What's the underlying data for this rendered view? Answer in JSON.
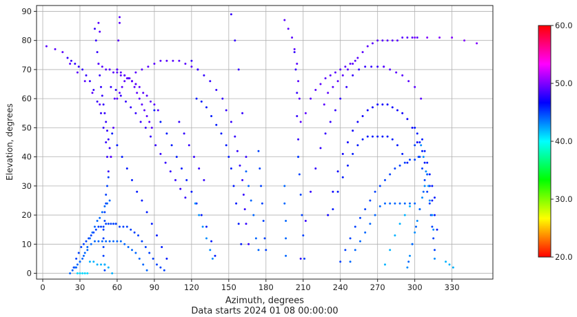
{
  "chart_data": {
    "type": "scatter",
    "title": "",
    "xlabel": "Azimuth, degrees",
    "ylabel": "Elevation, degrees",
    "footer": "Data starts 2024 01 08 00:00:00",
    "xlim": [
      -5,
      363
    ],
    "ylim": [
      -2,
      92
    ],
    "xticks": [
      0,
      30,
      60,
      90,
      120,
      150,
      180,
      210,
      240,
      270,
      300,
      330
    ],
    "yticks": [
      0,
      10,
      20,
      30,
      40,
      50,
      60,
      70,
      80,
      90
    ],
    "grid": true,
    "colorbar": {
      "min": 20,
      "max": 60,
      "ticks": [
        "20.0",
        "30.0",
        "40.0",
        "50.0",
        "60.0"
      ],
      "colormap": "hsv"
    },
    "tracks": [
      {
        "x": [
          3,
          10,
          16,
          22,
          28,
          34,
          40,
          46
        ],
        "y": [
          78,
          77,
          76,
          72,
          69,
          66,
          62,
          58
        ],
        "c": 49
      },
      {
        "x": [
          42,
          43,
          44,
          45,
          46,
          47,
          48,
          49,
          50,
          51,
          52,
          53,
          54,
          55
        ],
        "y": [
          84,
          80,
          76,
          72,
          68,
          64,
          61,
          58,
          55,
          52,
          49,
          46,
          43,
          40
        ],
        "c": 48
      },
      {
        "x": [
          45,
          46
        ],
        "y": [
          86,
          83
        ],
        "c": 49
      },
      {
        "x": [
          55,
          57,
          58,
          60,
          61,
          62,
          62
        ],
        "y": [
          40,
          50,
          60,
          70,
          80,
          86,
          88
        ],
        "c": 49
      },
      {
        "x": [
          20,
          23,
          26,
          29,
          32,
          35,
          38,
          41,
          44,
          47,
          49,
          51,
          52,
          53
        ],
        "y": [
          74,
          73,
          72,
          71,
          70,
          68,
          66,
          63,
          59,
          55,
          50,
          45,
          40,
          35
        ],
        "c": 48
      },
      {
        "x": [
          53,
          52,
          51,
          51,
          50,
          50,
          49,
          49,
          49,
          49,
          50,
          50
        ],
        "y": [
          33,
          30,
          27,
          24,
          21,
          18,
          15,
          12,
          9,
          6,
          3,
          1
        ],
        "c": 45
      },
      {
        "x": [
          45,
          48,
          51,
          54,
          57,
          60,
          63,
          66,
          69,
          72,
          75
        ],
        "y": [
          72,
          71,
          70,
          70,
          69,
          69,
          68,
          68,
          67,
          66,
          65
        ],
        "c": 49
      },
      {
        "x": [
          60,
          63,
          66,
          69,
          72,
          75,
          78,
          81,
          84,
          87,
          90,
          93
        ],
        "y": [
          70,
          69,
          68,
          67,
          66,
          65,
          64,
          62,
          61,
          59,
          58,
          56
        ],
        "c": 49
      },
      {
        "x": [
          60,
          62,
          64,
          66,
          68,
          70,
          72,
          74,
          76,
          78,
          80,
          82,
          84,
          86,
          88
        ],
        "y": [
          60,
          62,
          64,
          66,
          67,
          67,
          66,
          64,
          62,
          60,
          58,
          56,
          54,
          52,
          50
        ],
        "c": 49
      },
      {
        "x": [
          55,
          59,
          63,
          67,
          71,
          75,
          79,
          83,
          87,
          91,
          95,
          99,
          103,
          107,
          111,
          115
        ],
        "y": [
          64,
          63,
          61,
          59,
          57,
          55,
          52,
          50,
          47,
          44,
          41,
          38,
          35,
          32,
          29,
          26
        ],
        "c": 48
      },
      {
        "x": [
          56,
          60,
          64,
          68,
          72,
          76,
          80,
          84,
          88,
          92,
          96,
          100
        ],
        "y": [
          48,
          44,
          40,
          36,
          32,
          28,
          25,
          21,
          17,
          13,
          9,
          5
        ],
        "c": 46
      },
      {
        "x": [
          75,
          80,
          85,
          90,
          95,
          100,
          105,
          110,
          115,
          120,
          125
        ],
        "y": [
          69,
          70,
          71,
          72,
          73,
          73,
          73,
          73,
          72,
          71,
          70
        ],
        "c": 49
      },
      {
        "x": [
          90,
          95,
          100,
          104,
          108,
          112,
          116,
          120,
          124,
          128,
          132,
          136,
          139
        ],
        "y": [
          56,
          52,
          48,
          44,
          40,
          36,
          32,
          28,
          24,
          20,
          16,
          11,
          6
        ],
        "c": 46
      },
      {
        "x": [
          110,
          114,
          118,
          122,
          126,
          130
        ],
        "y": [
          52,
          48,
          44,
          40,
          36,
          32
        ],
        "c": 48
      },
      {
        "x": [
          120,
          125,
          130,
          135,
          140,
          145,
          148,
          152,
          155,
          157,
          159,
          161,
          162,
          163,
          164
        ],
        "y": [
          73,
          70,
          68,
          66,
          63,
          60,
          56,
          52,
          47,
          42,
          37,
          32,
          27,
          22,
          17
        ],
        "c": 48
      },
      {
        "x": [
          124,
          128,
          132,
          136,
          140,
          144,
          148,
          150,
          152,
          154,
          156,
          158,
          160
        ],
        "y": [
          60,
          59,
          57,
          54,
          51,
          48,
          44,
          40,
          36,
          30,
          24,
          17,
          10
        ],
        "c": 46
      },
      {
        "x": [
          123,
          126,
          129,
          132,
          135,
          137
        ],
        "y": [
          24,
          20,
          16,
          12,
          8,
          5
        ],
        "c": 43
      },
      {
        "x": [
          152,
          155,
          158,
          161,
          164,
          166
        ],
        "y": [
          89,
          80,
          70,
          55,
          40,
          10
        ],
        "c": 48
      },
      {
        "x": [
          164,
          166,
          168,
          170,
          172,
          174
        ],
        "y": [
          35,
          30,
          25,
          20,
          12,
          8
        ],
        "c": 44
      },
      {
        "x": [
          174,
          175,
          176,
          177,
          178,
          179,
          180
        ],
        "y": [
          42,
          36,
          30,
          24,
          18,
          12,
          8
        ],
        "c": 45
      },
      {
        "x": [
          195,
          198,
          201,
          203,
          205,
          206,
          207,
          208
        ],
        "y": [
          87,
          84,
          81,
          77,
          72,
          66,
          60,
          52
        ],
        "c": 49
      },
      {
        "x": [
          203,
          204,
          205,
          205,
          206,
          206
        ],
        "y": [
          76,
          70,
          62,
          54,
          46,
          40
        ],
        "c": 48
      },
      {
        "x": [
          195,
          195,
          196,
          196,
          196
        ],
        "y": [
          30,
          24,
          18,
          12,
          6
        ],
        "c": 44
      },
      {
        "x": [
          206,
          207,
          208,
          209,
          210,
          211
        ],
        "y": [
          40,
          34,
          27,
          20,
          13,
          5
        ],
        "c": 45
      },
      {
        "x": [
          208,
          212,
          216,
          220,
          224,
          228,
          232,
          236,
          240,
          245,
          250,
          255,
          260,
          265,
          270,
          275
        ],
        "y": [
          5,
          18,
          28,
          36,
          43,
          48,
          52,
          56,
          60,
          64,
          68,
          70,
          71,
          71,
          71,
          71
        ],
        "c": 48
      },
      {
        "x": [
          212,
          216,
          220,
          224,
          228,
          232,
          236,
          240,
          244,
          248,
          252
        ],
        "y": [
          55,
          60,
          63,
          65,
          67,
          68,
          69,
          70,
          71,
          72,
          73
        ],
        "c": 49
      },
      {
        "x": [
          227,
          230,
          234,
          238,
          242,
          246,
          250,
          254,
          258,
          262,
          266,
          270,
          274,
          278,
          282,
          286,
          290,
          294,
          298,
          302
        ],
        "y": [
          58,
          62,
          64,
          66,
          68,
          70,
          72,
          74,
          76,
          78,
          79,
          80,
          80,
          80,
          80,
          80,
          81,
          81,
          81,
          81
        ],
        "c": 49
      },
      {
        "x": [
          300,
          310,
          320,
          330,
          340,
          350
        ],
        "y": [
          81,
          81,
          81,
          81,
          80,
          79
        ],
        "c": 50
      },
      {
        "x": [
          275,
          280,
          285,
          290,
          295,
          300,
          305
        ],
        "y": [
          71,
          70,
          69,
          68,
          66,
          64,
          60
        ],
        "c": 49
      },
      {
        "x": [
          230,
          234,
          238,
          242,
          246,
          250,
          254,
          258,
          262,
          266,
          270,
          274,
          278,
          282,
          286,
          290,
          294,
          298,
          302
        ],
        "y": [
          20,
          28,
          35,
          41,
          45,
          49,
          52,
          54,
          56,
          57,
          58,
          58,
          58,
          57,
          56,
          55,
          53,
          50,
          45
        ],
        "c": 47
      },
      {
        "x": [
          234,
          238,
          242,
          246,
          250,
          254,
          258,
          262,
          266,
          270,
          274,
          278,
          282,
          286,
          290,
          294
        ],
        "y": [
          22,
          28,
          33,
          37,
          41,
          44,
          46,
          47,
          47,
          47,
          47,
          47,
          46,
          44,
          41,
          38
        ],
        "c": 46
      },
      {
        "x": [
          240,
          244,
          248,
          252,
          256,
          260,
          264,
          268,
          272,
          276,
          280,
          284,
          288,
          292,
          296,
          300,
          304
        ],
        "y": [
          4,
          8,
          12,
          16,
          19,
          22,
          25,
          28,
          30,
          32,
          34,
          36,
          37,
          38,
          39,
          39,
          40
        ],
        "c": 45
      },
      {
        "x": [
          248,
          252,
          256,
          260,
          264,
          268,
          272,
          276,
          280,
          284,
          288,
          292,
          296,
          300
        ],
        "y": [
          4,
          8,
          11,
          14,
          17,
          20,
          23,
          24,
          24,
          24,
          24,
          24,
          24,
          24
        ],
        "c": 44
      },
      {
        "x": [
          300,
          302,
          304,
          306,
          308,
          310,
          312,
          314,
          316,
          318
        ],
        "y": [
          50,
          48,
          45,
          42,
          38,
          34,
          30,
          25,
          20,
          15
        ],
        "c": 46
      },
      {
        "x": [
          300,
          303,
          306,
          308,
          310,
          312,
          313,
          314,
          315,
          316
        ],
        "y": [
          44,
          40,
          36,
          32,
          28,
          24,
          20,
          16,
          12,
          8
        ],
        "c": 45
      },
      {
        "x": [
          294,
          296,
          298,
          300,
          302,
          304,
          306,
          308
        ],
        "y": [
          2,
          6,
          10,
          14,
          18,
          22,
          26,
          30
        ],
        "c": 43
      },
      {
        "x": [
          295,
          298,
          301,
          304,
          307,
          310
        ],
        "y": [
          4,
          10,
          16,
          22,
          28,
          34
        ],
        "c": 44
      },
      {
        "x": [
          276,
          280,
          284,
          288,
          292,
          296
        ],
        "y": [
          3,
          8,
          13,
          17,
          20,
          23
        ],
        "c": 42
      },
      {
        "x": [
          305,
          307,
          309,
          311,
          312,
          314,
          315,
          316
        ],
        "y": [
          44,
          40,
          35,
          30,
          25,
          20,
          15,
          5
        ],
        "c": 43
      },
      {
        "x": [
          306,
          308,
          310,
          312,
          314,
          316
        ],
        "y": [
          46,
          42,
          38,
          34,
          30,
          26
        ],
        "c": 46
      },
      {
        "x": [
          325,
          328,
          331
        ],
        "y": [
          4,
          3,
          2
        ],
        "c": 42
      },
      {
        "x": [
          25,
          27,
          29,
          31,
          33,
          35,
          37,
          39,
          41,
          43,
          45,
          47,
          49,
          51,
          53,
          55,
          57,
          59
        ],
        "y": [
          2,
          5,
          7,
          9,
          10,
          11,
          12,
          13,
          14,
          15,
          16,
          16,
          16,
          17,
          17,
          17,
          17,
          17
        ],
        "c": 45
      },
      {
        "x": [
          59,
          62,
          65,
          68,
          71,
          74,
          77,
          80,
          83,
          86,
          89,
          92,
          95,
          98
        ],
        "y": [
          17,
          16,
          16,
          16,
          15,
          14,
          13,
          11,
          9,
          7,
          5,
          3,
          2,
          1
        ],
        "c": 45
      },
      {
        "x": [
          27,
          30,
          33,
          36,
          39,
          42,
          45,
          48,
          51,
          54,
          57,
          60,
          63,
          66,
          69,
          72,
          75,
          78,
          81,
          84
        ],
        "y": [
          2,
          4,
          6,
          8,
          10,
          11,
          11,
          11,
          11,
          11,
          11,
          11,
          11,
          10,
          9,
          8,
          7,
          5,
          3,
          1
        ],
        "c": 44
      },
      {
        "x": [
          22,
          24,
          26,
          28,
          30,
          32,
          34,
          36,
          38,
          40,
          42,
          44,
          46,
          48,
          50,
          52,
          54
        ],
        "y": [
          0,
          1,
          2,
          3,
          4,
          5,
          7,
          9,
          12,
          14,
          16,
          18,
          19,
          21,
          23,
          24,
          25
        ],
        "c": 44
      },
      {
        "x": [
          28,
          30,
          32,
          34,
          36
        ],
        "y": [
          0,
          0,
          0,
          0,
          0
        ],
        "c": 41
      },
      {
        "x": [
          38,
          41,
          44,
          47,
          50,
          53,
          56
        ],
        "y": [
          4,
          4,
          3,
          3,
          3,
          2,
          0
        ],
        "c": 42
      }
    ]
  }
}
